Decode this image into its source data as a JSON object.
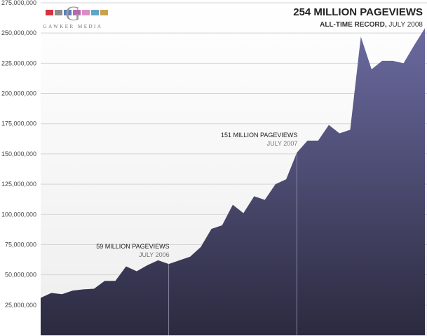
{
  "header": {
    "title": "254 MILLION PAGEVIEWS",
    "subtitle_strong": "ALL-TIME RECORD,",
    "subtitle_rest": " JULY 2008"
  },
  "logo": {
    "monogram": "G",
    "brand": "GAWKER MEDIA",
    "colors": [
      "#d8323c",
      "#8c8c8c",
      "#5a7fb8",
      "#b56ab0",
      "#d98fc4",
      "#5fa5c9",
      "#c9a34b"
    ]
  },
  "colors": {
    "area_top": "#6b6aa0",
    "area_bottom": "#2b2a3f",
    "grid": "#d5d5d5",
    "separator": "#9a9ab5"
  },
  "annotations": [
    {
      "title": "59 MILLION PAGEVIEWS",
      "date": "JULY 2006",
      "index": 24
    },
    {
      "title": "151 MILLION PAGEVIEWS",
      "date": "JULY 2007",
      "index": 48
    }
  ],
  "chart_data": {
    "type": "area",
    "title": "254 MILLION PAGEVIEWS",
    "subtitle": "ALL-TIME RECORD, JULY 2008",
    "ylim": [
      0,
      275000000
    ],
    "yticks": [
      "25,000,000",
      "50,000,000",
      "75,000,000",
      "100,000,000",
      "125,000,000",
      "150,000,000",
      "175,000,000",
      "200,000,000",
      "225,000,000",
      "250,000,000",
      "275,000,000"
    ],
    "grid": true,
    "series": [
      {
        "values": [
          31000000,
          35000000,
          34000000,
          37000000,
          38000000,
          38500000,
          45000000,
          45000000,
          57000000,
          53000000,
          58000000,
          62000000,
          59000000,
          62000000,
          65000000,
          73000000,
          88000000,
          91000000,
          108000000,
          101000000,
          115000000,
          112000000,
          125000000,
          129000000,
          151000000,
          161000000,
          161000000,
          174000000,
          167000000,
          170000000,
          247000000,
          220000000,
          227000000,
          227000000,
          225000000,
          240000000,
          254000000
        ]
      }
    ],
    "annotations": [
      {
        "index": 12,
        "label": "59 MILLION PAGEVIEWS",
        "date": "JULY 2006"
      },
      {
        "index": 24,
        "label": "151 MILLION PAGEVIEWS",
        "date": "JULY 2007"
      }
    ]
  }
}
